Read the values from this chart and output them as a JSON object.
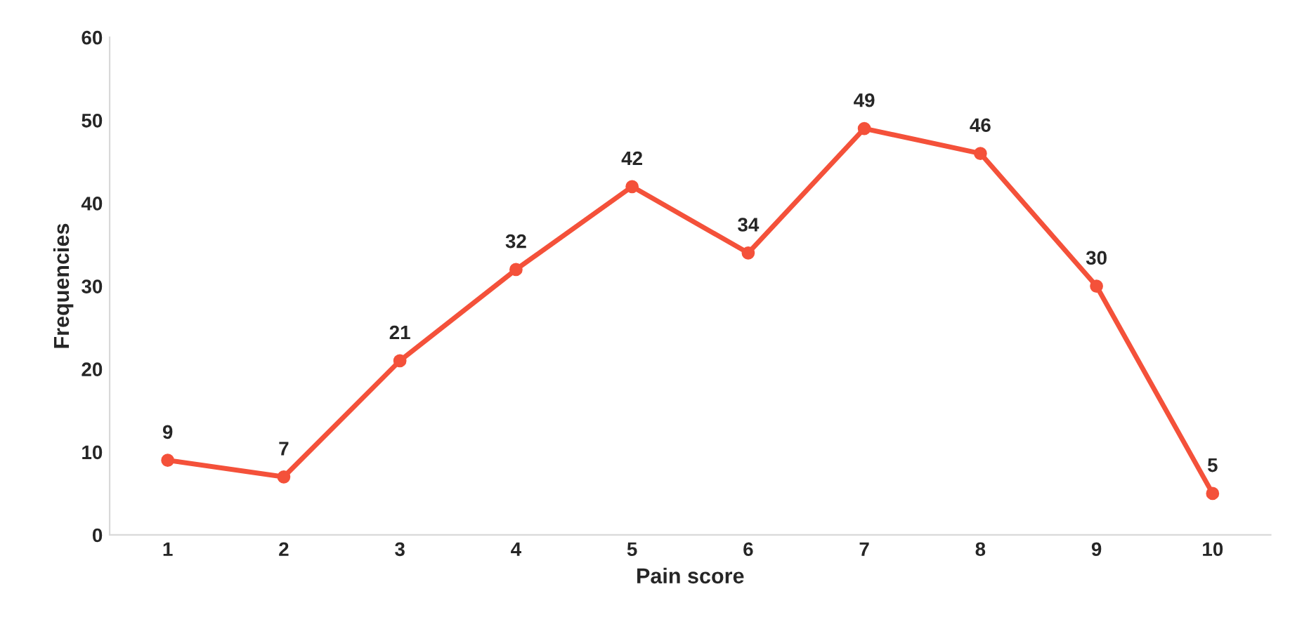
{
  "chart_data": {
    "type": "line",
    "xlabel": "Pain score",
    "ylabel": "Frequencies",
    "categories": [
      "1",
      "2",
      "3",
      "4",
      "5",
      "6",
      "7",
      "8",
      "9",
      "10"
    ],
    "series": [
      {
        "color": "#f4513a",
        "values": [
          9,
          7,
          21,
          32,
          42,
          34,
          49,
          46,
          30,
          5
        ]
      }
    ],
    "ylim": [
      0,
      60
    ],
    "yticks": [
      0,
      10,
      20,
      30,
      40,
      50,
      60
    ],
    "data_labels": true,
    "marker": "circle",
    "line_style": "solid",
    "grid": false,
    "legend": false
  }
}
